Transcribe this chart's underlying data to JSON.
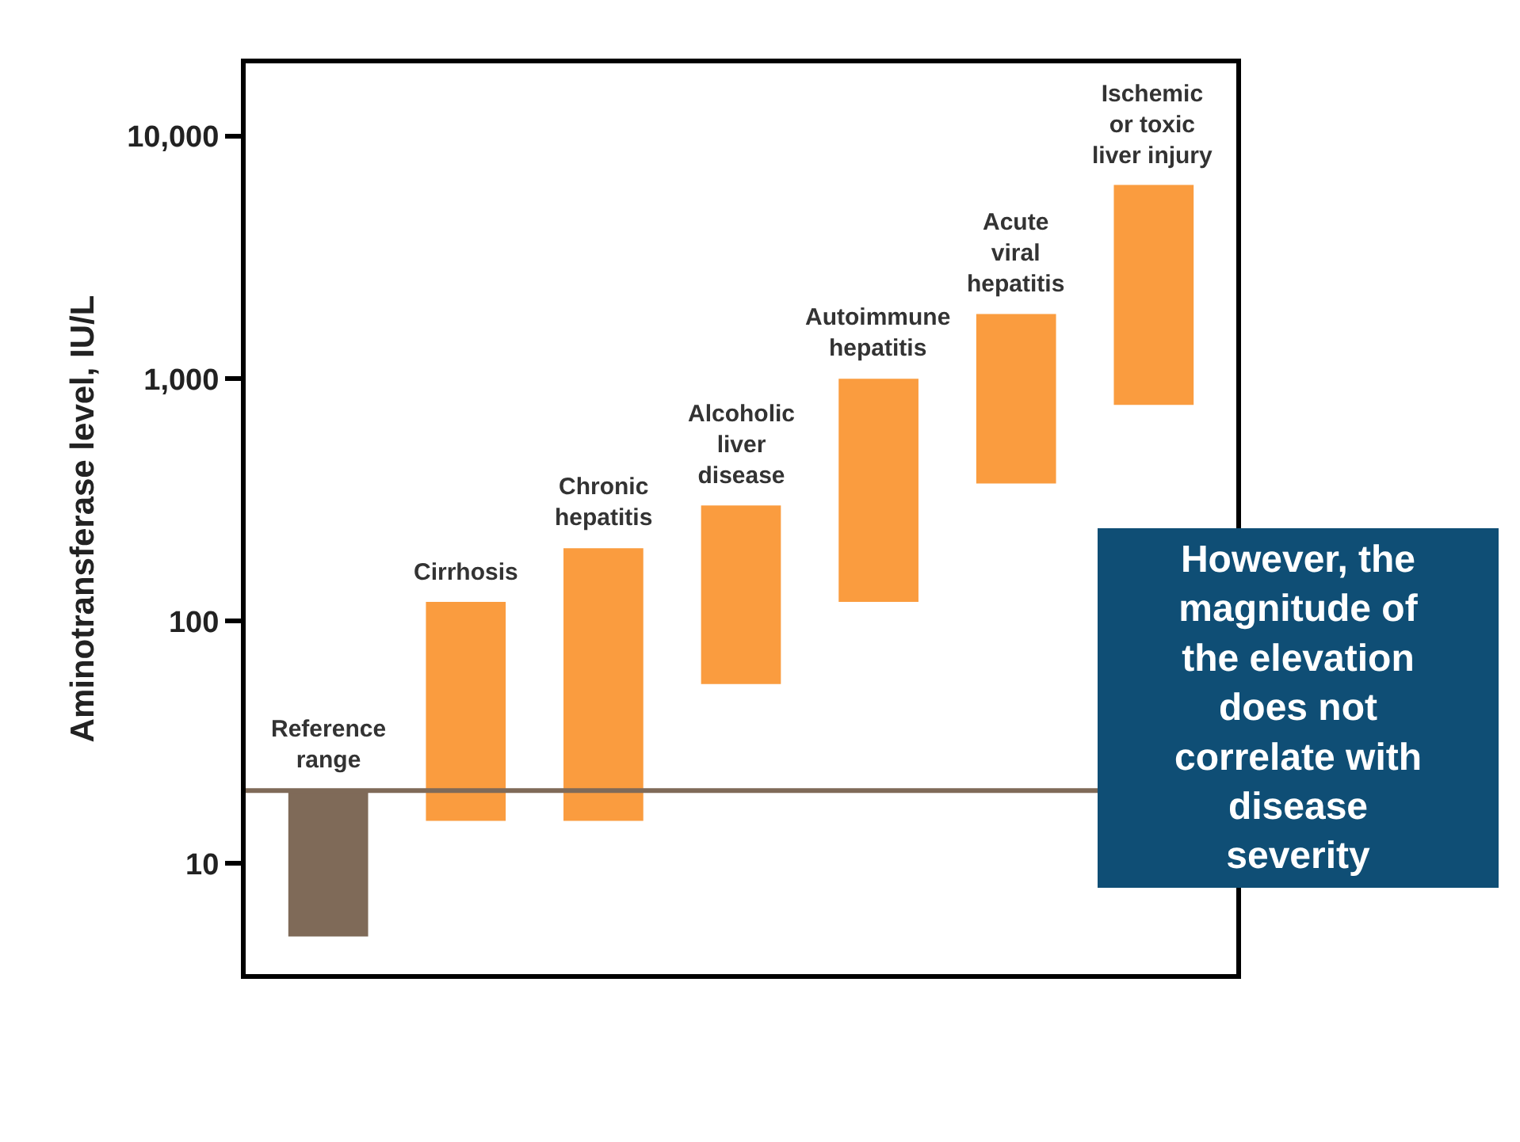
{
  "chart_data": {
    "type": "bar",
    "ylabel": "Aminotransferase level, IU/L",
    "categories": [
      "Reference\nrange",
      "Cirrhosis",
      "Chronic\nhepatitis",
      "Alcoholic\nliver\ndisease",
      "Autoimmune\nhepatitis",
      "Acute\nviral\nhepatitis",
      "Ischemic\nor toxic\nliver injury"
    ],
    "base": [
      5,
      15,
      15,
      55,
      120,
      370,
      780
    ],
    "values": [
      15,
      105,
      185,
      245,
      880,
      1480,
      5520
    ],
    "colors": [
      "#7f6a58",
      "#fa9c3f",
      "#fa9c3f",
      "#fa9c3f",
      "#fa9c3f",
      "#fa9c3f",
      "#fa9c3f"
    ],
    "log": true,
    "ylim": [
      3.5,
      20000
    ],
    "yticks": [
      {
        "value": 10,
        "label": "10"
      },
      {
        "value": 100,
        "label": "100"
      },
      {
        "value": 1000,
        "label": "1,000"
      },
      {
        "value": 10000,
        "label": "10,000"
      }
    ],
    "tick_labels": "y",
    "legend": false,
    "ref_lines": [
      {
        "axis": "y",
        "value": 20,
        "label": null,
        "color": "#7f6a58"
      }
    ],
    "annotations": [
      "However, the\nmagnitude of\nthe elevation\ndoes not\ncorrelate with\ndisease\nseverity"
    ]
  }
}
